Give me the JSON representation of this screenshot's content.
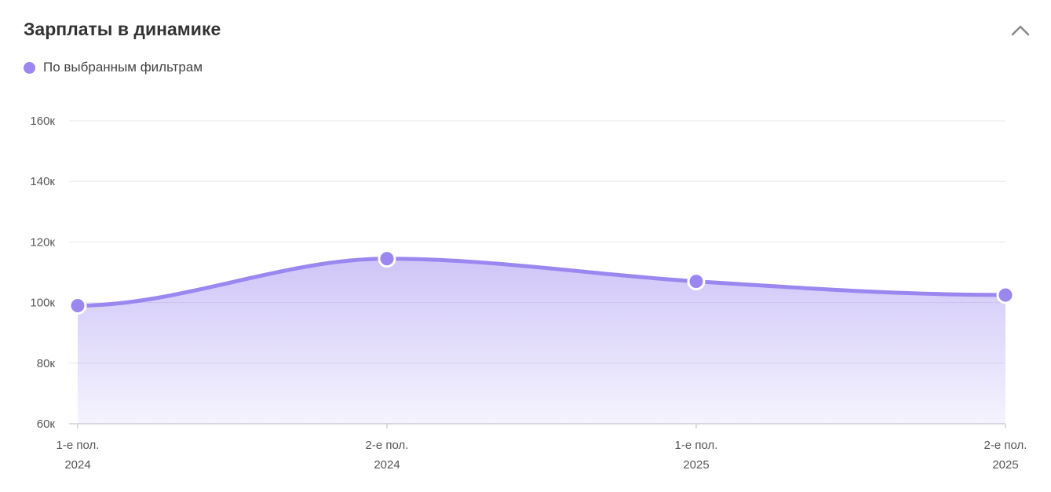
{
  "header": {
    "title": "Зарплаты в динамике"
  },
  "legend": {
    "label": "По выбранным фильтрам"
  },
  "colors": {
    "accent": "#9b87f0",
    "grid": "#e8e8ee",
    "axis": "#d0d0d8"
  },
  "icons": {
    "collapse": "chevron-up-icon"
  },
  "chart_data": {
    "type": "area",
    "title": "Зарплаты в динамике",
    "xlabel": "",
    "ylabel": "",
    "categories": [
      [
        "1-е пол.",
        "2024"
      ],
      [
        "2-е пол.",
        "2024"
      ],
      [
        "1-е пол.",
        "2025"
      ],
      [
        "2-е пол.",
        "2025"
      ]
    ],
    "series": [
      {
        "name": "По выбранным фильтрам",
        "values": [
          99000,
          114500,
          107000,
          102500
        ]
      }
    ],
    "ylim": [
      60000,
      160000
    ],
    "yticks": [
      {
        "value": 60000,
        "label": "60к"
      },
      {
        "value": 80000,
        "label": "80к"
      },
      {
        "value": 100000,
        "label": "100к"
      },
      {
        "value": 120000,
        "label": "120к"
      },
      {
        "value": 140000,
        "label": "140к"
      },
      {
        "value": 160000,
        "label": "160к"
      }
    ],
    "grid": true,
    "legend_position": "top-left"
  }
}
